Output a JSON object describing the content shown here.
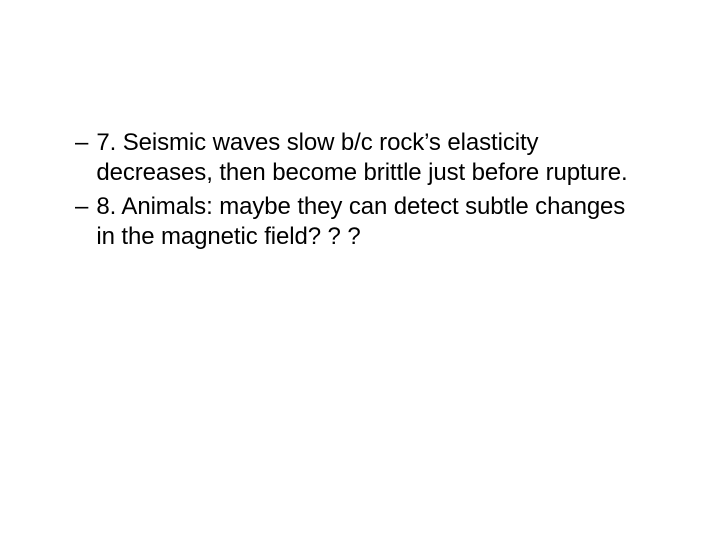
{
  "slide": {
    "bullets": [
      {
        "dash": "–",
        "text": "7. Seismic waves slow b/c rock’s elasticity decreases, then become brittle just before rupture."
      },
      {
        "dash": "–",
        "text": "8. Animals: maybe they can detect subtle changes in the magnetic field? ? ?"
      }
    ],
    "text_color": "#000000",
    "background_color": "#ffffff",
    "font_size_pt": 24,
    "font_family": "Arial"
  }
}
